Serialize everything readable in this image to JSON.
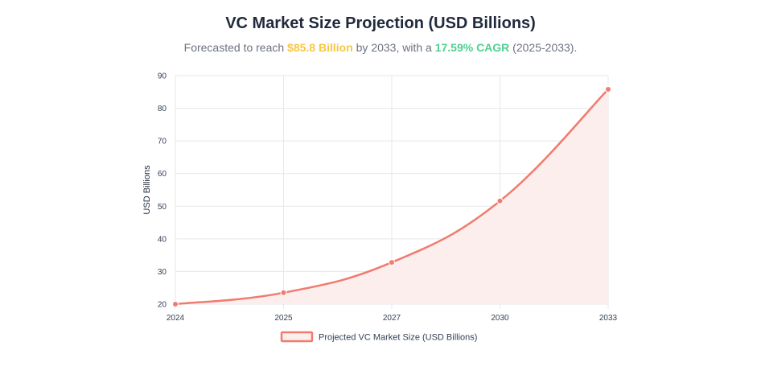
{
  "header": {
    "title": "VC Market Size Projection (USD Billions)",
    "subtitle_prefix": "Forecasted to reach ",
    "subtitle_value": "$85.8 Billion",
    "subtitle_middle": " by 2033, with a ",
    "subtitle_cagr": "17.59% CAGR",
    "subtitle_suffix": " (2025-2033)."
  },
  "colors": {
    "line": "#f07b6e",
    "fill": "#fdeeee",
    "highlight_value": "#f6c744",
    "highlight_cagr": "#4fd191",
    "grid": "#e5e7eb",
    "text": "#334155"
  },
  "chart_data": {
    "type": "area",
    "title": "VC Market Size Projection (USD Billions)",
    "categories": [
      "2024",
      "2025",
      "2027",
      "2030",
      "2033"
    ],
    "series": [
      {
        "name": "Projected VC Market Size (USD Billions)",
        "values": [
          20.0,
          23.5,
          32.8,
          51.6,
          85.8
        ]
      }
    ],
    "xlabel": "",
    "ylabel": "USD Billions",
    "ylim": [
      20,
      90
    ],
    "yticks": [
      20,
      30,
      40,
      50,
      60,
      70,
      80,
      90
    ],
    "grid": true,
    "legend": "bottom"
  }
}
